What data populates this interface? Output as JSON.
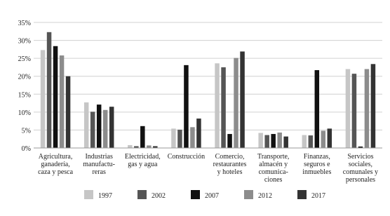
{
  "chart_data": {
    "type": "bar",
    "categories": [
      "Agricultura,\nganadería,\ncaza y pesca",
      "Industrias\nmanufactu-\nreras",
      "Electricidad,\ngas y agua",
      "Construcción",
      "Comercio,\nrestaurantes\ny hoteles",
      "Transporte,\nalmacén y\ncomunica-\nciones",
      "Finanzas,\nseguros e\ninmuebles",
      "Servicios\nsociales,\ncomunales y\npersonales"
    ],
    "series": [
      {
        "name": "1997",
        "color": "#c6c6c6",
        "values": [
          27.3,
          12.7,
          0.8,
          5.4,
          23.6,
          4.2,
          3.6,
          22.0
        ]
      },
      {
        "name": "2002",
        "color": "#555555",
        "values": [
          32.3,
          10.1,
          0.5,
          5.1,
          22.5,
          3.6,
          3.5,
          20.7
        ]
      },
      {
        "name": "2007",
        "color": "#111111",
        "values": [
          28.4,
          12.1,
          6.1,
          23.1,
          3.9,
          3.9,
          21.7,
          0.4
        ]
      },
      {
        "name": "2012",
        "color": "#8c8c8c",
        "values": [
          25.8,
          10.6,
          0.7,
          5.8,
          25.1,
          4.3,
          4.8,
          22.0
        ]
      },
      {
        "name": "2017",
        "color": "#333333",
        "values": [
          20.0,
          11.5,
          0.5,
          8.2,
          26.9,
          3.2,
          5.4,
          23.4
        ]
      }
    ],
    "ylim": [
      0,
      35
    ],
    "yticks": [
      {
        "value": 0,
        "label": "0%"
      },
      {
        "value": 5,
        "label": "5%"
      },
      {
        "value": 10,
        "label": "10%"
      },
      {
        "value": 15,
        "label": "15%"
      },
      {
        "value": 20,
        "label": "20%"
      },
      {
        "value": 25,
        "label": "25%"
      },
      {
        "value": 30,
        "label": "30%"
      },
      {
        "value": 35,
        "label": "35%"
      }
    ],
    "grid": true,
    "legend": "bottom"
  }
}
